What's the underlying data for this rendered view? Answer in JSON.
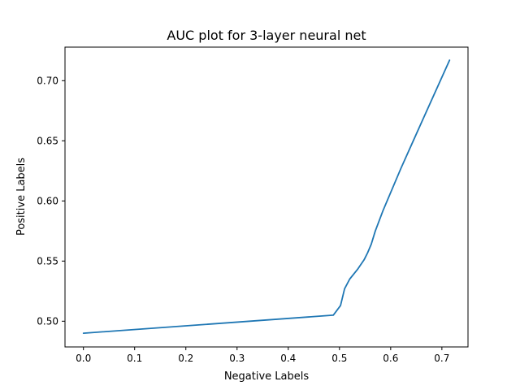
{
  "chart_data": {
    "type": "line",
    "title": "AUC plot for 3-layer neural net",
    "xlabel": "Negative Labels",
    "ylabel": "Positive Labels",
    "xlim": [
      -0.036,
      0.751
    ],
    "ylim": [
      0.4786,
      0.7279
    ],
    "xticks": [
      0.0,
      0.1,
      0.2,
      0.3,
      0.4,
      0.5,
      0.6,
      0.7
    ],
    "xtick_labels": [
      "0.0",
      "0.1",
      "0.2",
      "0.3",
      "0.4",
      "0.5",
      "0.6",
      "0.7"
    ],
    "yticks": [
      0.5,
      0.55,
      0.6,
      0.65,
      0.7
    ],
    "ytick_labels": [
      "0.50",
      "0.55",
      "0.60",
      "0.65",
      "0.70"
    ],
    "grid": false,
    "legend": "none",
    "series": [
      {
        "color": "#1f77b4",
        "x": [
          0.0,
          0.488,
          0.502,
          0.51,
          0.52,
          0.535,
          0.548,
          0.555,
          0.562,
          0.57,
          0.585,
          0.62,
          0.66,
          0.715
        ],
        "y": [
          0.49,
          0.505,
          0.513,
          0.527,
          0.535,
          0.543,
          0.551,
          0.557,
          0.564,
          0.575,
          0.592,
          0.627,
          0.665,
          0.717
        ]
      }
    ]
  }
}
